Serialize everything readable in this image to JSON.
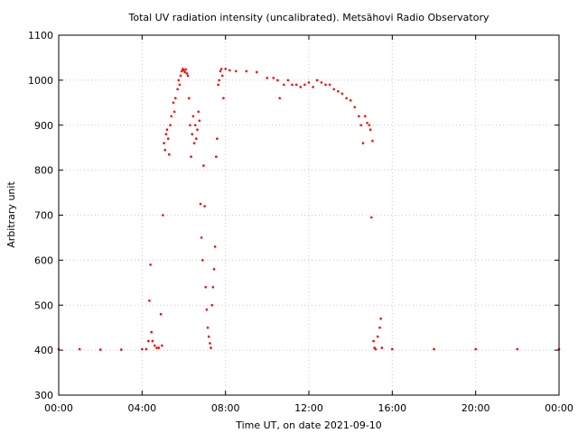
{
  "chart_data": {
    "type": "scatter",
    "title": "Total UV radiation intensity (uncalibrated). Metsähovi Radio Observatory",
    "xlabel": "Time UT, on date 2021-09-10",
    "ylabel": "Arbitrary unit",
    "xlim": [
      0,
      24
    ],
    "ylim": [
      300,
      1100
    ],
    "grid": true,
    "x_ticks": [
      {
        "value": 0,
        "label": "00:00"
      },
      {
        "value": 4,
        "label": "04:00"
      },
      {
        "value": 8,
        "label": "08:00"
      },
      {
        "value": 12,
        "label": "12:00"
      },
      {
        "value": 16,
        "label": "16:00"
      },
      {
        "value": 20,
        "label": "20:00"
      },
      {
        "value": 24,
        "label": "00:00"
      }
    ],
    "y_ticks": [
      300,
      400,
      500,
      600,
      700,
      800,
      900,
      1000,
      1100
    ],
    "marker_color": "#ff0000",
    "series": [
      {
        "points": [
          [
            0.0,
            402
          ],
          [
            1.0,
            402
          ],
          [
            2.0,
            401
          ],
          [
            3.0,
            401
          ],
          [
            4.0,
            402
          ],
          [
            4.2,
            402
          ],
          [
            4.3,
            420
          ],
          [
            4.35,
            510
          ],
          [
            4.4,
            590
          ],
          [
            4.45,
            440
          ],
          [
            4.5,
            420
          ],
          [
            4.6,
            410
          ],
          [
            4.7,
            405
          ],
          [
            4.8,
            405
          ],
          [
            4.9,
            480
          ],
          [
            4.95,
            410
          ],
          [
            5.0,
            700
          ],
          [
            5.05,
            860
          ],
          [
            5.1,
            845
          ],
          [
            5.15,
            880
          ],
          [
            5.2,
            890
          ],
          [
            5.25,
            870
          ],
          [
            5.3,
            835
          ],
          [
            5.35,
            900
          ],
          [
            5.4,
            920
          ],
          [
            5.5,
            950
          ],
          [
            5.55,
            930
          ],
          [
            5.6,
            960
          ],
          [
            5.7,
            980
          ],
          [
            5.75,
            1000
          ],
          [
            5.8,
            990
          ],
          [
            5.85,
            1010
          ],
          [
            5.9,
            1020
          ],
          [
            5.95,
            1025
          ],
          [
            6.0,
            1022
          ],
          [
            6.05,
            1018
          ],
          [
            6.1,
            1024
          ],
          [
            6.15,
            1015
          ],
          [
            6.2,
            1010
          ],
          [
            6.25,
            960
          ],
          [
            6.3,
            900
          ],
          [
            6.35,
            830
          ],
          [
            6.4,
            880
          ],
          [
            6.45,
            920
          ],
          [
            6.5,
            860
          ],
          [
            6.55,
            900
          ],
          [
            6.6,
            870
          ],
          [
            6.65,
            890
          ],
          [
            6.7,
            930
          ],
          [
            6.75,
            910
          ],
          [
            6.8,
            725
          ],
          [
            6.85,
            650
          ],
          [
            6.9,
            600
          ],
          [
            6.95,
            810
          ],
          [
            7.0,
            720
          ],
          [
            7.05,
            540
          ],
          [
            7.1,
            490
          ],
          [
            7.15,
            450
          ],
          [
            7.2,
            430
          ],
          [
            7.25,
            415
          ],
          [
            7.3,
            405
          ],
          [
            7.35,
            500
          ],
          [
            7.4,
            540
          ],
          [
            7.45,
            580
          ],
          [
            7.5,
            630
          ],
          [
            7.55,
            830
          ],
          [
            7.6,
            870
          ],
          [
            7.65,
            990
          ],
          [
            7.7,
            1000
          ],
          [
            7.75,
            1020
          ],
          [
            7.8,
            1025
          ],
          [
            7.85,
            1010
          ],
          [
            7.9,
            960
          ],
          [
            8.0,
            1025
          ],
          [
            8.2,
            1022
          ],
          [
            8.5,
            1020
          ],
          [
            9.0,
            1020
          ],
          [
            9.5,
            1018
          ],
          [
            10.0,
            1005
          ],
          [
            10.3,
            1005
          ],
          [
            10.5,
            1000
          ],
          [
            10.6,
            960
          ],
          [
            10.8,
            990
          ],
          [
            11.0,
            1000
          ],
          [
            11.2,
            990
          ],
          [
            11.4,
            990
          ],
          [
            11.6,
            985
          ],
          [
            11.8,
            990
          ],
          [
            12.0,
            995
          ],
          [
            12.2,
            985
          ],
          [
            12.4,
            1000
          ],
          [
            12.6,
            995
          ],
          [
            12.8,
            990
          ],
          [
            13.0,
            990
          ],
          [
            13.2,
            980
          ],
          [
            13.4,
            975
          ],
          [
            13.6,
            970
          ],
          [
            13.8,
            960
          ],
          [
            14.0,
            955
          ],
          [
            14.2,
            940
          ],
          [
            14.4,
            920
          ],
          [
            14.5,
            900
          ],
          [
            14.6,
            860
          ],
          [
            14.7,
            920
          ],
          [
            14.8,
            905
          ],
          [
            14.9,
            900
          ],
          [
            14.95,
            890
          ],
          [
            15.0,
            695
          ],
          [
            15.05,
            865
          ],
          [
            15.1,
            420
          ],
          [
            15.15,
            405
          ],
          [
            15.2,
            402
          ],
          [
            15.3,
            430
          ],
          [
            15.4,
            450
          ],
          [
            15.45,
            470
          ],
          [
            15.5,
            405
          ],
          [
            16.0,
            402
          ],
          [
            18.0,
            402
          ],
          [
            20.0,
            402
          ],
          [
            22.0,
            402
          ],
          [
            24.0,
            402
          ]
        ]
      }
    ]
  }
}
